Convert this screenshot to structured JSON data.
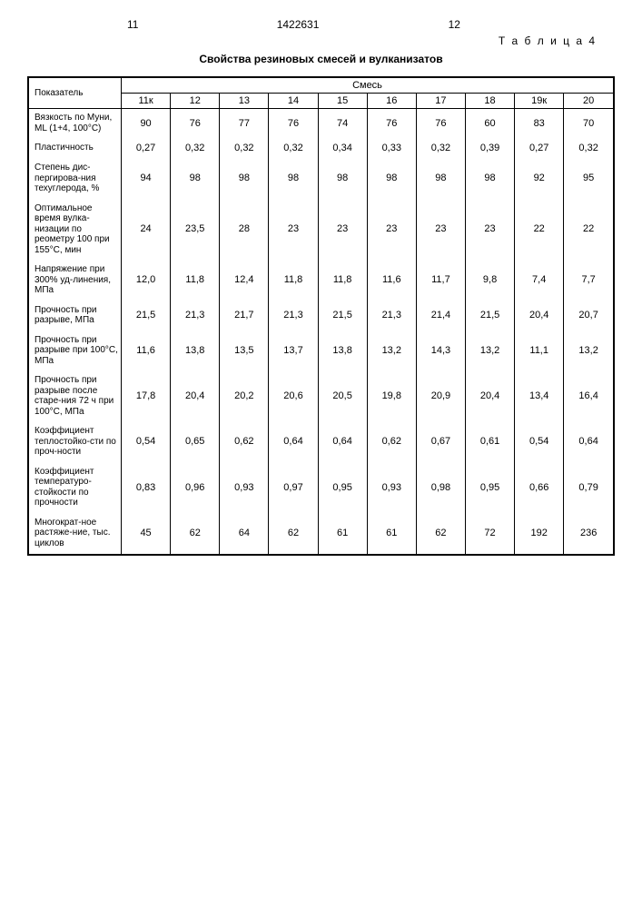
{
  "header": {
    "page_left": "11",
    "doc_num": "1422631",
    "page_right": "12",
    "table_label": "Т а б л и ц а 4",
    "title": "Свойства резиновых смесей и вулканизатов"
  },
  "table": {
    "indicator_header": "Показатель",
    "group_header": "Смесь",
    "columns": [
      "11к",
      "12",
      "13",
      "14",
      "15",
      "16",
      "17",
      "18",
      "19к",
      "20"
    ],
    "rows": [
      {
        "label": "Вязкость по Муни, ML (1+4, 100°С)",
        "values": [
          "90",
          "76",
          "77",
          "76",
          "74",
          "76",
          "76",
          "60",
          "83",
          "70"
        ]
      },
      {
        "label": "Пластичность",
        "values": [
          "0,27",
          "0,32",
          "0,32",
          "0,32",
          "0,34",
          "0,33",
          "0,32",
          "0,39",
          "0,27",
          "0,32"
        ]
      },
      {
        "label": "Степень дис-пергирова-ния техуглерода, %",
        "values": [
          "94",
          "98",
          "98",
          "98",
          "98",
          "98",
          "98",
          "98",
          "92",
          "95"
        ]
      },
      {
        "label": "Оптимальное время вулка-низации по реометру 100 при 155°С, мин",
        "values": [
          "24",
          "23,5",
          "28",
          "23",
          "23",
          "23",
          "23",
          "23",
          "22",
          "22"
        ]
      },
      {
        "label": "Напряжение при 300% уд-линения, МПа",
        "values": [
          "12,0",
          "11,8",
          "12,4",
          "11,8",
          "11,8",
          "11,6",
          "11,7",
          "9,8",
          "7,4",
          "7,7"
        ]
      },
      {
        "label": "Прочность при разрыве, МПа",
        "values": [
          "21,5",
          "21,3",
          "21,7",
          "21,3",
          "21,5",
          "21,3",
          "21,4",
          "21,5",
          "20,4",
          "20,7"
        ]
      },
      {
        "label": "Прочность при разрыве при 100°С, МПа",
        "values": [
          "11,6",
          "13,8",
          "13,5",
          "13,7",
          "13,8",
          "13,2",
          "14,3",
          "13,2",
          "11,1",
          "13,2"
        ]
      },
      {
        "label": "Прочность при разрыве после старе-ния 72 ч при 100°С, МПа",
        "values": [
          "17,8",
          "20,4",
          "20,2",
          "20,6",
          "20,5",
          "19,8",
          "20,9",
          "20,4",
          "13,4",
          "16,4"
        ]
      },
      {
        "label": "Коэффициент теплостойко-сти по проч-ности",
        "values": [
          "0,54",
          "0,65",
          "0,62",
          "0,64",
          "0,64",
          "0,62",
          "0,67",
          "0,61",
          "0,54",
          "0,64"
        ]
      },
      {
        "label": "Коэффициент температуро-стойкости по прочности",
        "values": [
          "0,83",
          "0,96",
          "0,93",
          "0,97",
          "0,95",
          "0,93",
          "0,98",
          "0,95",
          "0,66",
          "0,79"
        ]
      },
      {
        "label": "Многократ-ное растяже-ние, тыс. циклов",
        "values": [
          "45",
          "62",
          "64",
          "62",
          "61",
          "61",
          "62",
          "72",
          "192",
          "236"
        ]
      }
    ]
  },
  "style": {
    "font_family": "Arial, sans-serif",
    "base_fontsize": 11,
    "title_fontsize": 12,
    "row_label_fontsize": 10,
    "background_color": "#ffffff",
    "text_color": "#000000",
    "border_color": "#000000",
    "col_width_first": 92,
    "col_width_data": 50,
    "outer_border_width": 2,
    "inner_border_width": 1
  }
}
